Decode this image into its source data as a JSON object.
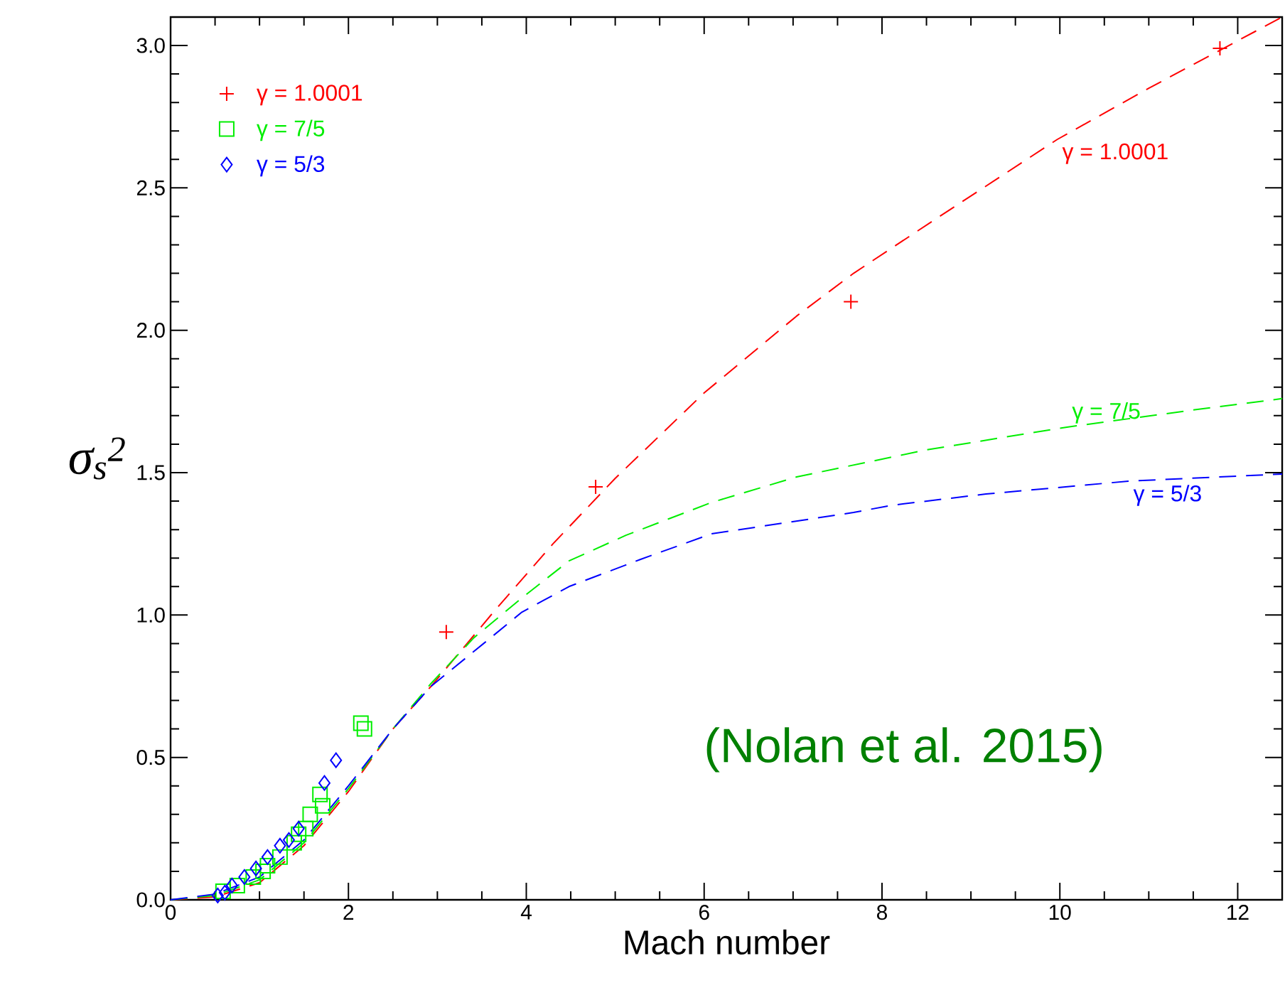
{
  "chart_data": {
    "type": "scatter",
    "xlabel": "Mach number",
    "ylabel": "σ$_{s}$$^{2}$",
    "xlim": [
      0,
      12.5
    ],
    "ylim": [
      0,
      3.1
    ],
    "xticks": [
      0,
      2,
      4,
      6,
      8,
      10,
      12
    ],
    "yticks": [
      {
        "value": 0,
        "label": "0.0"
      },
      {
        "value": 0.5,
        "label": "0.5"
      },
      {
        "value": 1,
        "label": "1.0"
      },
      {
        "value": 1.5,
        "label": "1.5"
      },
      {
        "value": 2,
        "label": "2.0"
      },
      {
        "value": 2.5,
        "label": "2.5"
      },
      {
        "value": 3,
        "label": "3.0"
      }
    ],
    "legend": "top left",
    "grid": false,
    "annotations": [
      "(Nolan et al. 2015)"
    ],
    "series": [
      {
        "name": "γ = 1.0001",
        "color": "#ff0000",
        "marker": "cross",
        "x": [
          3.1,
          4.78,
          7.65,
          11.8
        ],
        "values": [
          0.94,
          1.45,
          2.1,
          2.99
        ]
      },
      {
        "name": "γ = 7/5",
        "color": "#00ee00",
        "marker": "square",
        "x": [
          2.14,
          2.18,
          1.68,
          1.71,
          1.57,
          1.52,
          1.44,
          1.39,
          1.23,
          1.09,
          1.04,
          0.93,
          0.75,
          0.59
        ],
        "values": [
          0.62,
          0.6,
          0.37,
          0.33,
          0.3,
          0.25,
          0.23,
          0.2,
          0.15,
          0.12,
          0.1,
          0.08,
          0.05,
          0.03
        ]
      },
      {
        "name": "γ = 5/3",
        "color": "#0000ff",
        "marker": "diamond",
        "x": [
          1.86,
          1.73,
          1.44,
          1.33,
          1.23,
          1.09,
          0.96,
          0.83,
          0.69,
          0.61,
          0.53
        ],
        "values": [
          0.49,
          0.41,
          0.25,
          0.21,
          0.19,
          0.15,
          0.11,
          0.08,
          0.05,
          0.025,
          0.015
        ]
      },
      {
        "name": "γ = 1.0001",
        "color": "#ff0000",
        "type": "line",
        "marker": "none",
        "line_style": "dashed",
        "x": [
          0,
          0.5,
          1,
          1.5,
          2,
          2.5,
          2.93,
          3.63,
          4.3,
          5,
          6,
          7.04,
          7.68,
          8.6,
          9.97,
          11,
          12.2,
          12.5
        ],
        "values": [
          0,
          0.01,
          0.06,
          0.19,
          0.38,
          0.6,
          0.75,
          1.01,
          1.25,
          1.48,
          1.78,
          2.05,
          2.2,
          2.39,
          2.67,
          2.85,
          3.05,
          3.1
        ]
      },
      {
        "name": "γ = 7/5",
        "color": "#00ee00",
        "type": "line",
        "marker": "none",
        "line_style": "dashed",
        "x": [
          0,
          0.5,
          1,
          1.5,
          2,
          2.5,
          2.93,
          3.41,
          3.95,
          4.48,
          5.12,
          6.08,
          7.04,
          8.5,
          10.08,
          11.5,
          12.5
        ],
        "values": [
          0,
          0.015,
          0.07,
          0.2,
          0.39,
          0.6,
          0.76,
          0.92,
          1.06,
          1.19,
          1.28,
          1.395,
          1.485,
          1.58,
          1.66,
          1.72,
          1.76
        ]
      },
      {
        "name": "γ = 5/3",
        "color": "#0000ff",
        "type": "line",
        "marker": "none",
        "line_style": "dashed",
        "x": [
          0,
          0.5,
          1,
          1.5,
          2,
          2.5,
          2.93,
          3.52,
          3.95,
          4.48,
          5.28,
          6.08,
          7.68,
          8.1,
          9.17,
          10.77,
          12.5
        ],
        "values": [
          0,
          0.02,
          0.08,
          0.21,
          0.4,
          0.6,
          0.75,
          0.9,
          1.01,
          1.1,
          1.195,
          1.285,
          1.36,
          1.385,
          1.425,
          1.47,
          1.495
        ]
      }
    ]
  }
}
